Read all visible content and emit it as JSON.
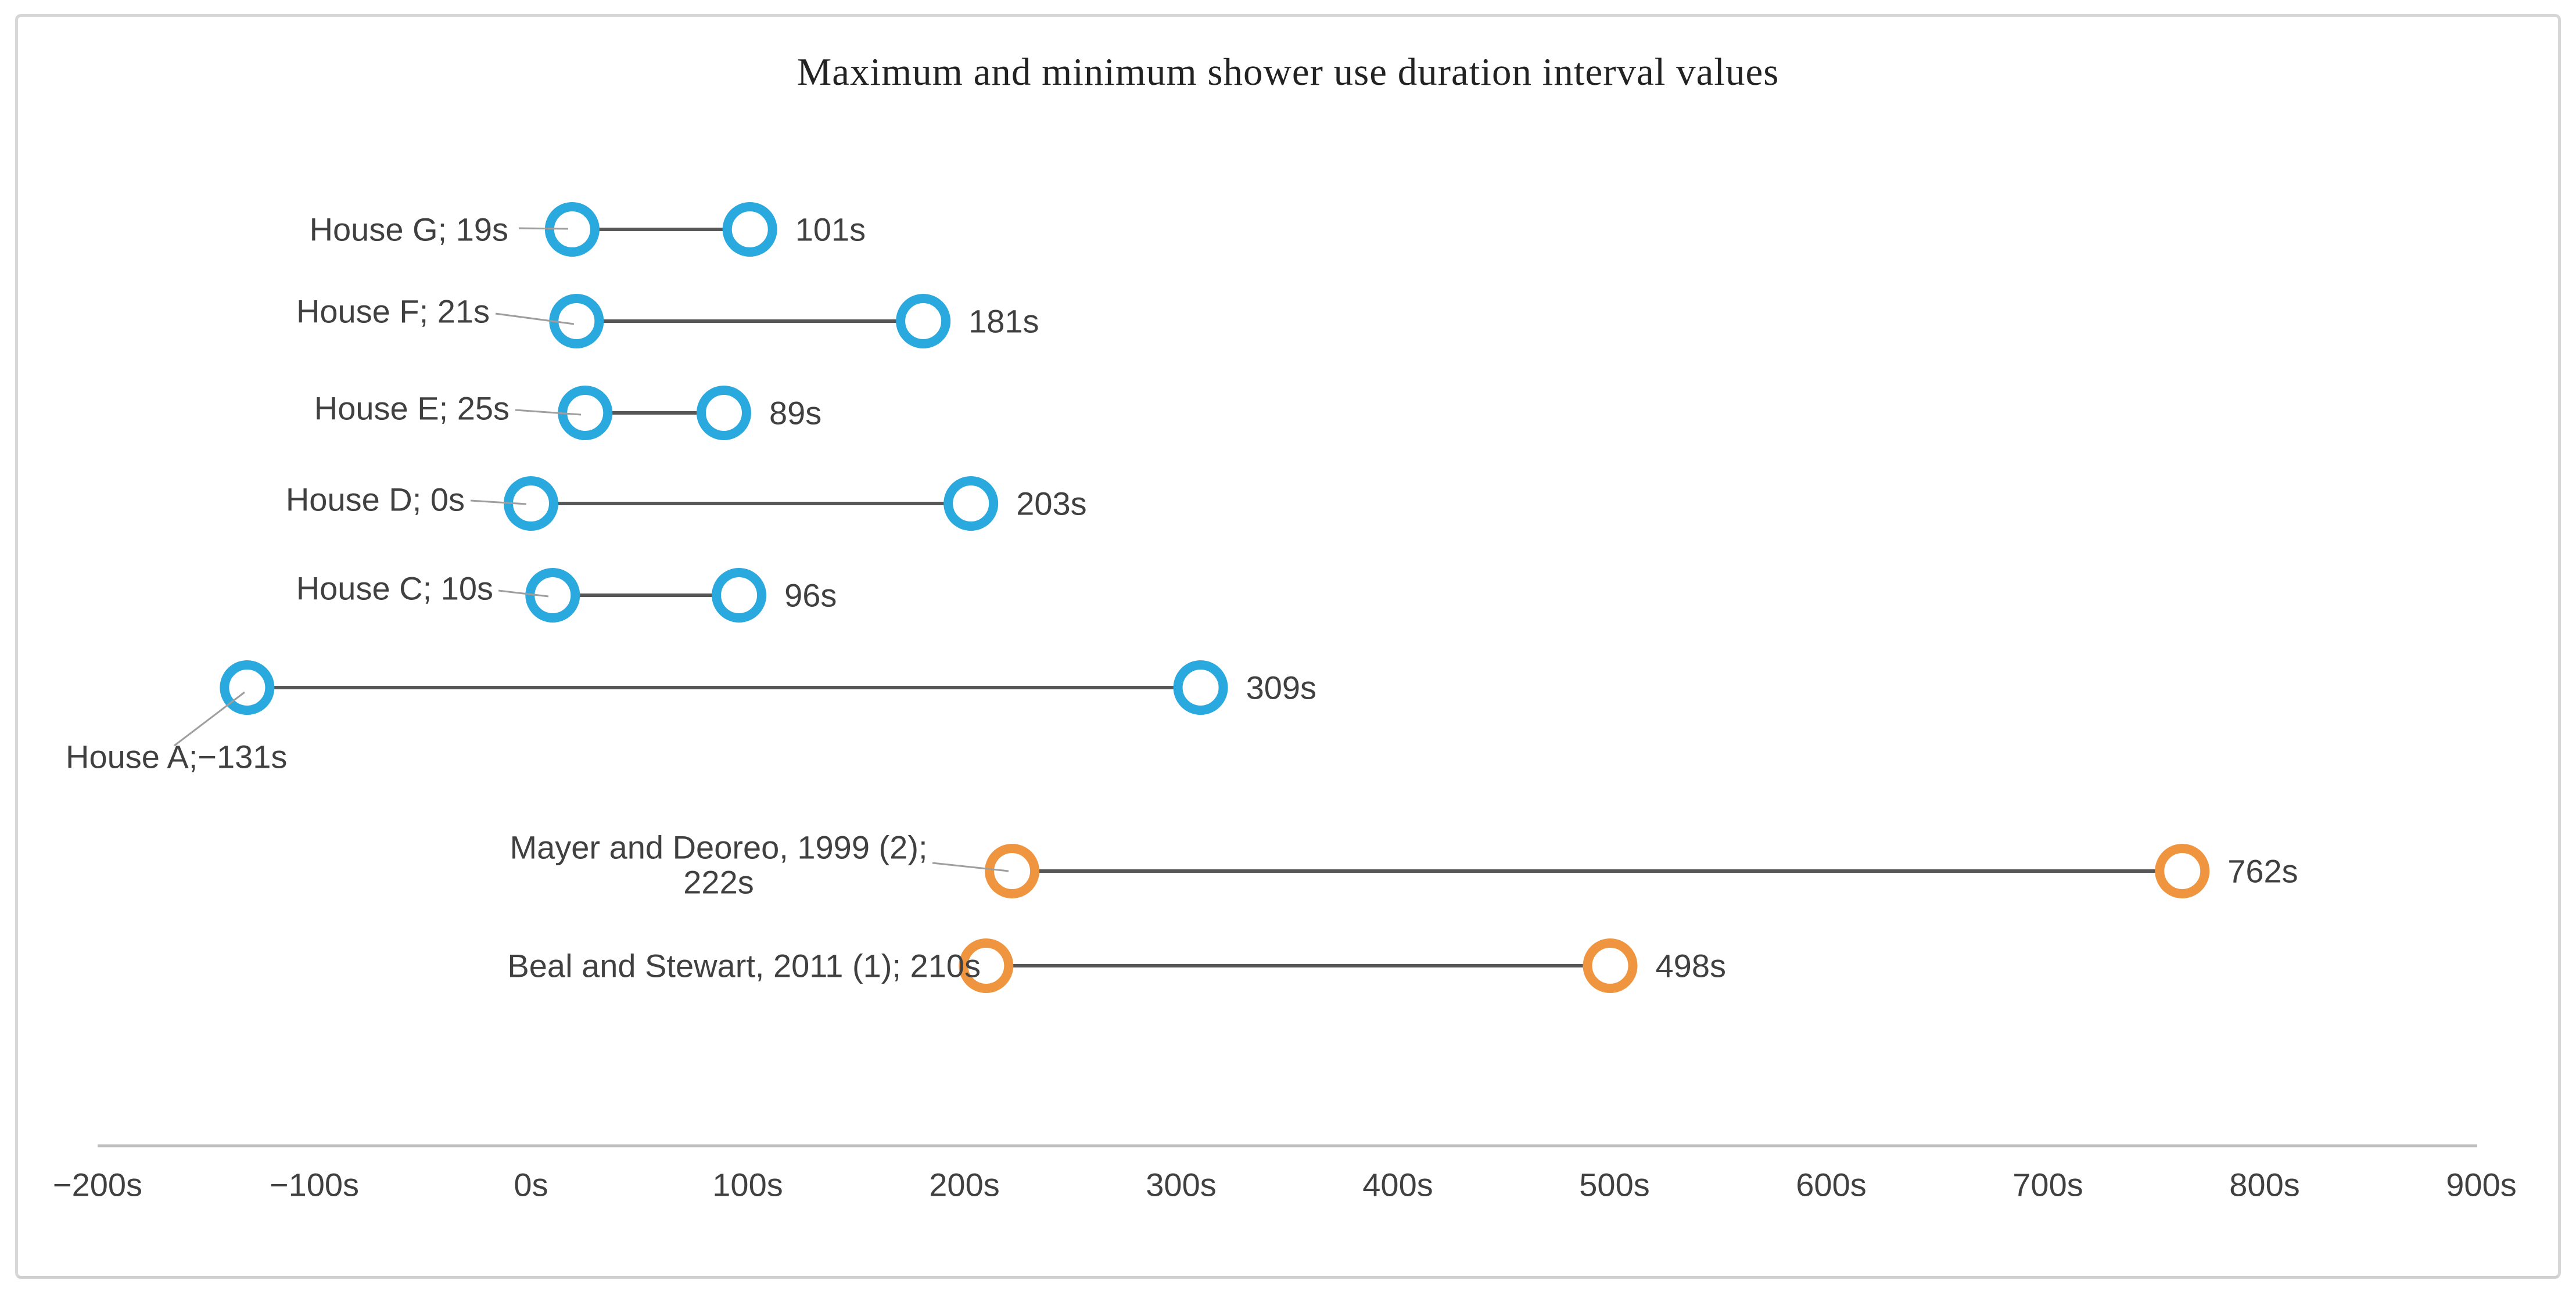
{
  "chart_data": {
    "type": "dumbbell",
    "title": "Maximum and minimum shower use duration interval values",
    "x_unit": "s",
    "xlim": [
      -200,
      900
    ],
    "grid": false,
    "legend": "none",
    "x_tick_values": [
      -200,
      -100,
      0,
      100,
      200,
      300,
      400,
      500,
      600,
      700,
      800,
      900
    ],
    "x_tick_labels": [
      "−200s",
      "−100s",
      "0s",
      "100s",
      "200s",
      "300s",
      "400s",
      "500s",
      "600s",
      "700s",
      "800s",
      "900s"
    ],
    "series_colors": {
      "house": "#29A9DD",
      "study": "#F0953F"
    },
    "connector_color": "#575757",
    "leader_color": "#9E9E9E",
    "axis_line_color": "#BFBFBF",
    "rows": [
      {
        "name": "House G",
        "group": "house",
        "min": 19,
        "max": 101,
        "label": "House G; 19s",
        "max_label": "101s"
      },
      {
        "name": "House F",
        "group": "house",
        "min": 21,
        "max": 181,
        "label": "House F; 21s",
        "max_label": "181s"
      },
      {
        "name": "House E",
        "group": "house",
        "min": 25,
        "max": 89,
        "label": "House E; 25s",
        "max_label": "89s"
      },
      {
        "name": "House D",
        "group": "house",
        "min": 0,
        "max": 203,
        "label": "House D; 0s",
        "max_label": "203s"
      },
      {
        "name": "House C",
        "group": "house",
        "min": 10,
        "max": 96,
        "label": "House C; 10s",
        "max_label": "96s"
      },
      {
        "name": "House A",
        "group": "house",
        "min": -131,
        "max": 309,
        "label": "House A;−131s",
        "max_label": "309s"
      },
      {
        "name": "Mayer and Deoreo, 1999 (2)",
        "group": "study",
        "min": 222,
        "max": 762,
        "label_lines": [
          "Mayer and Deoreo, 1999 (2);",
          "222s"
        ],
        "max_label": "762s"
      },
      {
        "name": "Beal and Stewart, 2011 (1)",
        "group": "study",
        "min": 210,
        "max": 498,
        "label": "Beal and Stewart, 2011 (1); 210s",
        "max_label": "498s"
      }
    ]
  }
}
